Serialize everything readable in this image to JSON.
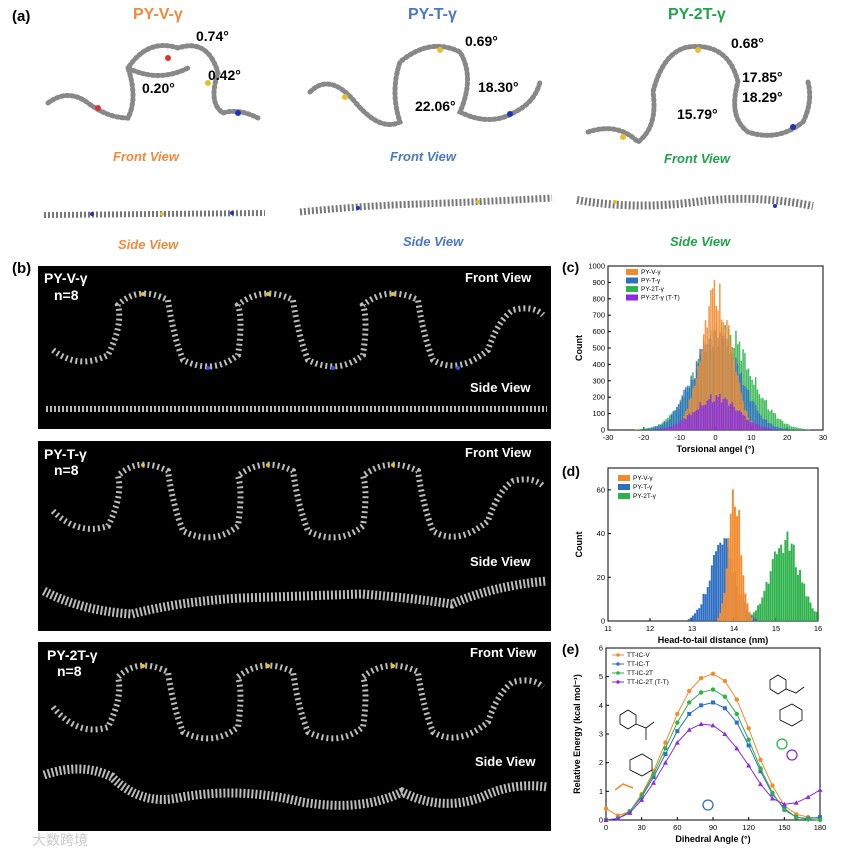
{
  "panel_a": {
    "letter": "(a)",
    "molecules": [
      {
        "title": "PY-V-γ",
        "color": "#ef8a3c",
        "angles": [
          "0.74°",
          "0.42°",
          "0.20°"
        ],
        "front": "Front View",
        "side": "Side View"
      },
      {
        "title": "PY-T-γ",
        "color": "#4a78c4",
        "angles": [
          "0.69°",
          "18.30°",
          "22.06°"
        ],
        "front": "Front View",
        "side": "Side View"
      },
      {
        "title": "PY-2T-γ",
        "color": "#1fa34a",
        "angles": [
          "0.68°",
          "17.85°",
          "18.29°",
          "15.79°"
        ],
        "front": "Front View",
        "side": "Side View"
      }
    ]
  },
  "panel_b": {
    "letter": "(b)",
    "blocks": [
      {
        "title": "PY-V-γ",
        "n": "n=8",
        "front": "Front View",
        "side": "Side View"
      },
      {
        "title": "PY-T-γ",
        "n": "n=8",
        "front": "Front View",
        "side": "Side View"
      },
      {
        "title": "PY-2T-γ",
        "n": "n=8",
        "front": "Front View",
        "side": "Side View"
      }
    ]
  },
  "colors": {
    "orange": "#f28a2e",
    "blue": "#2e6fc4",
    "green": "#2eb24b",
    "purple": "#8a2be2"
  },
  "chart_data": [
    {
      "panel": "(c)",
      "type": "bar",
      "xlabel": "Torsional angel (°)",
      "ylabel": "Count",
      "xlim": [
        -30,
        30
      ],
      "ylim": [
        0,
        1000
      ],
      "xticks": [
        -30,
        -20,
        -10,
        0,
        10,
        20,
        30
      ],
      "yticks": [
        0,
        100,
        200,
        300,
        400,
        500,
        600,
        700,
        800,
        900,
        1000
      ],
      "legend": [
        "PY-V-γ",
        "PY-T-γ",
        "PY-2T-γ",
        "PY-2T-γ (T-T)"
      ],
      "legend_position": "top-left",
      "series": [
        {
          "name": "PY-V-γ",
          "color": "#f28a2e",
          "center": 0,
          "sd": 4.2,
          "peak": 840
        },
        {
          "name": "PY-T-γ",
          "color": "#2e6fc4",
          "center": 0,
          "sd": 6.5,
          "peak": 560
        },
        {
          "name": "PY-2T-γ",
          "color": "#2eb24b",
          "center": 2,
          "sd": 7.5,
          "peak": 590
        },
        {
          "name": "PY-2T-γ (T-T)",
          "color": "#8a2be2",
          "center": 0,
          "sd": 6.0,
          "peak": 200
        }
      ]
    },
    {
      "panel": "(d)",
      "type": "bar",
      "xlabel": "Head-to-tail distance (nm)",
      "ylabel": "Count",
      "xlim": [
        11,
        16
      ],
      "ylim": [
        0,
        70
      ],
      "xticks": [
        11,
        12,
        13,
        14,
        15,
        16
      ],
      "yticks": [
        0,
        20,
        40,
        60
      ],
      "legend": [
        "PY-V-γ",
        "PY-T-γ",
        "PY-2T-γ"
      ],
      "legend_position": "top-left",
      "series": [
        {
          "name": "PY-V-γ",
          "color": "#f28a2e",
          "center": 14.0,
          "sd": 0.15,
          "peak": 58
        },
        {
          "name": "PY-T-γ",
          "color": "#2e6fc4",
          "center": 13.7,
          "sd": 0.3,
          "peak": 35
        },
        {
          "name": "PY-2T-γ",
          "color": "#2eb24b",
          "center": 15.2,
          "sd": 0.35,
          "peak": 36
        }
      ]
    },
    {
      "panel": "(e)",
      "type": "line",
      "xlabel": "Dihedral Angle (°)",
      "ylabel": "Relative Energy (kcal mol⁻¹)",
      "xlim": [
        0,
        180
      ],
      "ylim": [
        0,
        6
      ],
      "xticks": [
        0,
        30,
        60,
        90,
        120,
        150,
        180
      ],
      "yticks": [
        0,
        1,
        2,
        3,
        4,
        5,
        6
      ],
      "x": [
        0,
        10,
        20,
        30,
        40,
        50,
        60,
        70,
        80,
        90,
        100,
        110,
        120,
        130,
        140,
        150,
        160,
        170,
        180
      ],
      "legend_position": "top-left",
      "series": [
        {
          "name": "TT-IC-V",
          "color": "#f28a2e",
          "values": [
            0.4,
            0.15,
            0.3,
            0.9,
            1.7,
            2.7,
            3.7,
            4.5,
            4.95,
            5.1,
            4.85,
            4.2,
            3.2,
            2.1,
            1.2,
            0.5,
            0.2,
            0.1,
            0.05
          ]
        },
        {
          "name": "TT-IC-T",
          "color": "#2e6fc4",
          "values": [
            0.0,
            0.05,
            0.3,
            0.8,
            1.5,
            2.3,
            3.1,
            3.7,
            4.0,
            4.1,
            3.9,
            3.4,
            2.6,
            1.7,
            0.9,
            0.4,
            0.1,
            0.05,
            0.1
          ]
        },
        {
          "name": "TT-IC-2T",
          "color": "#2eb24b",
          "values": [
            0.0,
            0.05,
            0.3,
            0.85,
            1.6,
            2.5,
            3.4,
            4.1,
            4.45,
            4.55,
            4.3,
            3.7,
            2.8,
            1.8,
            0.95,
            0.35,
            0.1,
            0.02,
            0.0
          ]
        },
        {
          "name": "TT-IC-2T (T-T)",
          "color": "#8a2be2",
          "values": [
            0.0,
            0.05,
            0.25,
            0.7,
            1.3,
            2.0,
            2.7,
            3.15,
            3.35,
            3.3,
            3.0,
            2.5,
            1.9,
            1.25,
            0.75,
            0.55,
            0.6,
            0.8,
            1.05
          ]
        }
      ]
    }
  ],
  "watermark": "大数跨境"
}
